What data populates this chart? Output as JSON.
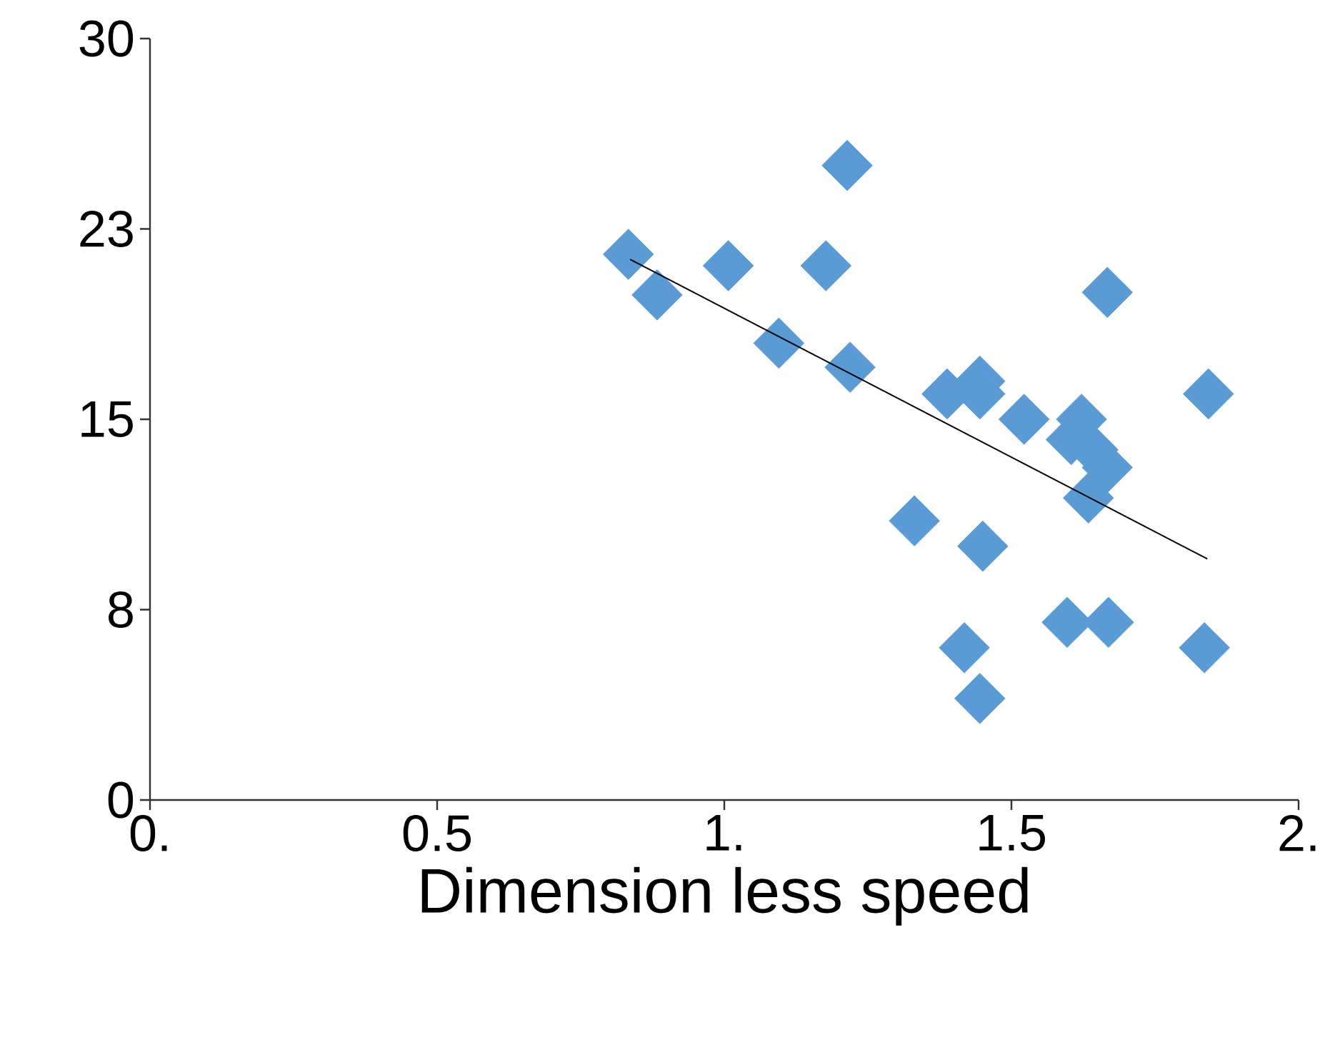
{
  "chart_data": {
    "type": "scatter",
    "xlabel": "Dimension less speed",
    "xlim": [
      0,
      2
    ],
    "ylim": [
      0,
      30
    ],
    "xticks": [
      {
        "value": 0,
        "label": "0."
      },
      0.5,
      {
        "value": 1,
        "label": "1."
      },
      1.5,
      {
        "value": 2,
        "label": "2."
      }
    ],
    "yticks": [
      0,
      {
        "value": 7.5,
        "label": "8"
      },
      15,
      {
        "value": 22.5,
        "label": "23"
      },
      30
    ],
    "grid": false,
    "series": [
      {
        "color": "#5b9bd5",
        "marker": "diamond",
        "x": [
          0.833,
          0.883,
          1.007,
          1.095,
          1.177,
          1.214,
          1.219,
          1.331,
          1.388,
          1.445,
          1.445,
          1.45,
          1.418,
          1.445,
          1.522,
          1.604,
          1.622,
          1.642,
          1.667,
          1.634,
          1.667,
          1.597,
          1.669,
          1.836,
          1.843
        ],
        "values": [
          21.5,
          19.9,
          21.05,
          18.0,
          21.05,
          25.0,
          17.05,
          11.0,
          16.0,
          16.5,
          16.0,
          10.0,
          6.0,
          4.0,
          15.0,
          14.2,
          15.0,
          13.8,
          13.1,
          11.9,
          20.0,
          7.0,
          7.0,
          6.0,
          16.0
        ]
      },
      {
        "type": "line",
        "color": "#000000",
        "marker": "none",
        "line_style": "solid",
        "x": [
          0.836,
          1.841
        ],
        "values": [
          21.3,
          9.5
        ]
      }
    ]
  }
}
